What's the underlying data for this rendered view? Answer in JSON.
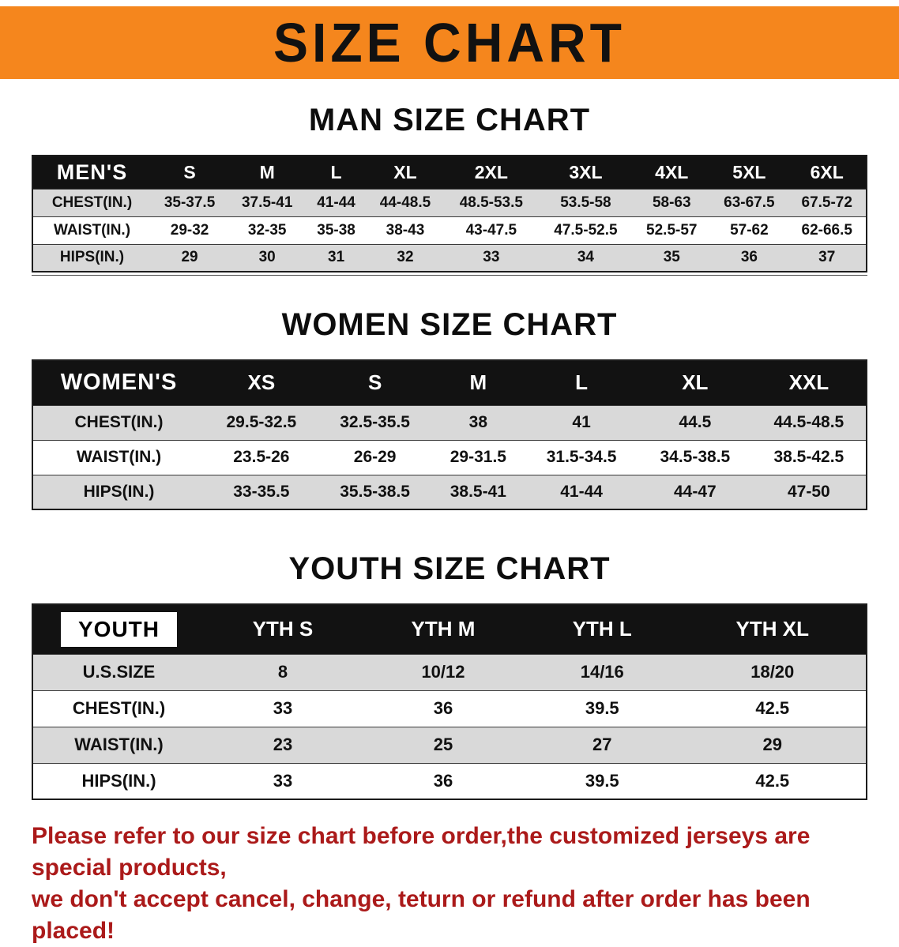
{
  "banner": {
    "title": "SIZE CHART",
    "bg_color": "#F5861D",
    "text_color": "#111111"
  },
  "sections": {
    "men": {
      "heading": "MAN SIZE CHART",
      "table": {
        "header": [
          "MEN'S",
          "S",
          "M",
          "L",
          "XL",
          "2XL",
          "3XL",
          "4XL",
          "5XL",
          "6XL"
        ],
        "rows": [
          [
            "CHEST(IN.)",
            "35-37.5",
            "37.5-41",
            "41-44",
            "44-48.5",
            "48.5-53.5",
            "53.5-58",
            "58-63",
            "63-67.5",
            "67.5-72"
          ],
          [
            "WAIST(IN.)",
            "29-32",
            "32-35",
            "35-38",
            "38-43",
            "43-47.5",
            "47.5-52.5",
            "52.5-57",
            "57-62",
            "62-66.5"
          ],
          [
            "HIPS(IN.)",
            "29",
            "30",
            "31",
            "32",
            "33",
            "34",
            "35",
            "36",
            "37"
          ]
        ]
      }
    },
    "women": {
      "heading": "WOMEN SIZE CHART",
      "table": {
        "header": [
          "WOMEN'S",
          "XS",
          "S",
          "M",
          "L",
          "XL",
          "XXL"
        ],
        "rows": [
          [
            "CHEST(IN.)",
            "29.5-32.5",
            "32.5-35.5",
            "38",
            "41",
            "44.5",
            "44.5-48.5"
          ],
          [
            "WAIST(IN.)",
            "23.5-26",
            "26-29",
            "29-31.5",
            "31.5-34.5",
            "34.5-38.5",
            "38.5-42.5"
          ],
          [
            "HIPS(IN.)",
            "33-35.5",
            "35.5-38.5",
            "38.5-41",
            "41-44",
            "44-47",
            "47-50"
          ]
        ]
      }
    },
    "youth": {
      "heading": "YOUTH SIZE CHART",
      "table": {
        "header": [
          "YOUTH",
          "YTH S",
          "YTH M",
          "YTH L",
          "YTH XL"
        ],
        "rows": [
          [
            "U.S.SIZE",
            "8",
            "10/12",
            "14/16",
            "18/20"
          ],
          [
            "CHEST(IN.)",
            "33",
            "36",
            "39.5",
            "42.5"
          ],
          [
            "WAIST(IN.)",
            "23",
            "25",
            "27",
            "29"
          ],
          [
            "HIPS(IN.)",
            "33",
            "36",
            "39.5",
            "42.5"
          ]
        ]
      }
    }
  },
  "disclaimer": {
    "line1": "Please refer to our size chart before order,the customized jerseys are special products,",
    "line2": "we don't accept cancel, change, teturn or refund after order has been placed!",
    "color": "#AB1A1A"
  }
}
